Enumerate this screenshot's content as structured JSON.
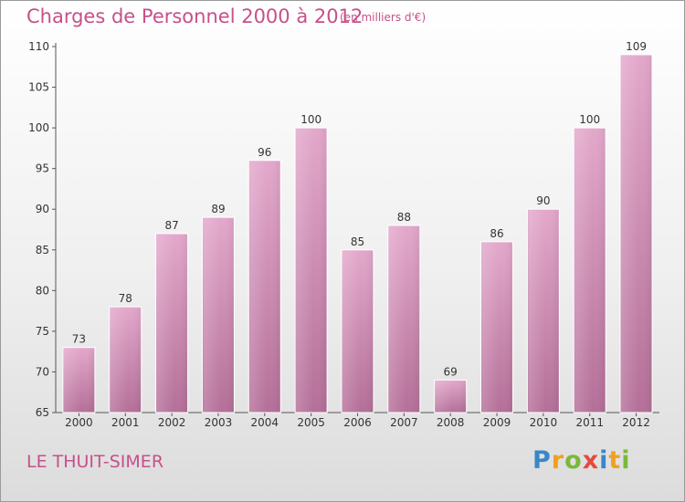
{
  "header": {
    "title": "Charges de Personnel 2000 à 2012",
    "subtitle": "(en milliers d'€)"
  },
  "footer": {
    "place": "LE THUIT-SIMER",
    "logo_text": "Proxiti"
  },
  "colors": {
    "accent": "#c7508a",
    "bar_top": "#e3a8cb",
    "bar_bottom": "#b46f98",
    "axis": "#555555"
  },
  "chart_data": {
    "type": "bar",
    "categories": [
      "2000",
      "2001",
      "2002",
      "2003",
      "2004",
      "2005",
      "2006",
      "2007",
      "2008",
      "2009",
      "2010",
      "2011",
      "2012"
    ],
    "values": [
      73,
      78,
      87,
      89,
      96,
      100,
      85,
      88,
      69,
      86,
      90,
      100,
      109
    ],
    "ylim": [
      65,
      110
    ],
    "yticks": [
      65,
      70,
      75,
      80,
      85,
      90,
      95,
      100,
      105,
      110
    ],
    "grid": false,
    "legend": "none"
  }
}
